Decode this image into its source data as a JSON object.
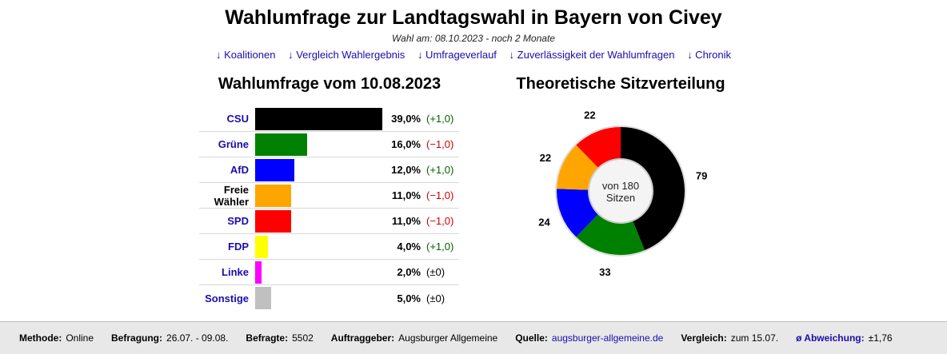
{
  "header": {
    "title": "Wahlumfrage zur Landtagswahl in Bayern von Civey",
    "subtitle": "Wahl am: 08.10.2023 - noch 2 Monate",
    "nav": [
      "↓ Koalitionen",
      "↓ Vergleich Wahlergebnis",
      "↓ Umfrageverlauf",
      "↓ Zuverlässigkeit der Wahlumfragen",
      "↓ Chronik"
    ]
  },
  "poll_title": "Wahlumfrage vom 10.08.2023",
  "seat_title": "Theoretische Sitzverteilung",
  "chart_data": [
    {
      "type": "bar",
      "orientation": "horizontal",
      "title": "Wahlumfrage vom 10.08.2023",
      "categories": [
        "CSU",
        "Grüne",
        "AfD",
        "Freie Wähler",
        "SPD",
        "FDP",
        "Linke",
        "Sonstige"
      ],
      "values": [
        39.0,
        16.0,
        12.0,
        11.0,
        11.0,
        4.0,
        2.0,
        5.0
      ],
      "value_labels": [
        "39,0%",
        "16,0%",
        "12,0%",
        "11,0%",
        "11,0%",
        "4,0%",
        "2,0%",
        "5,0%"
      ],
      "changes": [
        "(+1,0)",
        "(−1,0)",
        "(+1,0)",
        "(−1,0)",
        "(−1,0)",
        "(+1,0)",
        "(±0)",
        "(±0)"
      ],
      "change_direction": [
        "up",
        "down",
        "up",
        "down",
        "down",
        "up",
        "none",
        "none"
      ],
      "colors": [
        "#000000",
        "#008000",
        "#0000ff",
        "#ffa500",
        "#ff0000",
        "#ffff00",
        "#ff00ff",
        "#c0c0c0"
      ],
      "linked": [
        true,
        true,
        true,
        false,
        true,
        true,
        true,
        true
      ],
      "xlim": [
        0,
        39
      ]
    },
    {
      "type": "pie",
      "style": "donut",
      "title": "Theoretische Sitzverteilung",
      "center_label": "von 180 Sitzen",
      "total": 180,
      "labels": [
        "CSU",
        "Grüne",
        "AfD",
        "Freie Wähler",
        "SPD"
      ],
      "values": [
        79,
        33,
        24,
        22,
        22
      ],
      "colors": [
        "#000000",
        "#008000",
        "#0000ff",
        "#ffa500",
        "#ff0000"
      ]
    }
  ],
  "footer": {
    "methode_label": "Methode:",
    "methode": "Online",
    "befragung_label": "Befragung:",
    "befragung": "26.07. - 09.08.",
    "befragte_label": "Befragte:",
    "befragte": "5502",
    "auftraggeber_label": "Auftraggeber:",
    "auftraggeber": "Augsburger Allgemeine",
    "quelle_label": "Quelle:",
    "quelle": "augsburger-allgemeine.de",
    "vergleich_label": "Vergleich:",
    "vergleich": "zum 15.07.",
    "abweichung_label": "ø Abweichung:",
    "abweichung": "±1,76"
  },
  "colors": {
    "link": "#1a0dab",
    "positive": "#006400",
    "negative": "#cc0000"
  }
}
